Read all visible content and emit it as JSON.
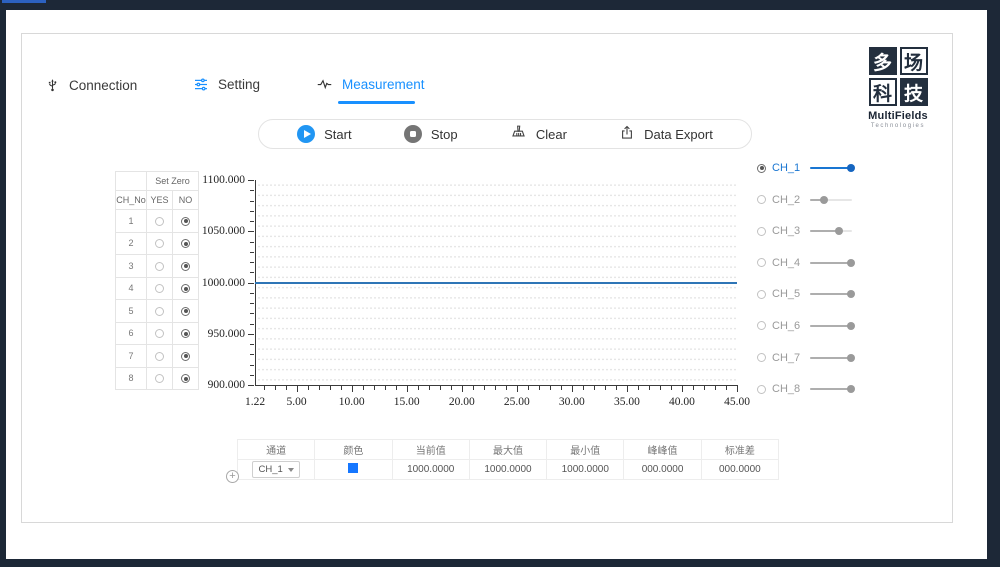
{
  "colors": {
    "frame_navy": "#1d2837",
    "accent_blue": "#1890ff",
    "start_blue": "#2196f3",
    "series_blue": "#2e75b6",
    "channel_blue": "#1976d2",
    "swatch_blue": "#1677ff"
  },
  "tabs": [
    {
      "label": "Connection",
      "icon": "usb-icon",
      "active": false
    },
    {
      "label": "Setting",
      "icon": "sliders-icon",
      "active": false
    },
    {
      "label": "Measurement",
      "icon": "pulse-icon",
      "active": true
    }
  ],
  "logo": {
    "chars": [
      "多",
      "场",
      "科",
      "技"
    ],
    "name": "MultiFields",
    "sub": "Technologies"
  },
  "toolbar": {
    "start_label": "Start",
    "stop_label": "Stop",
    "clear_label": "Clear",
    "export_label": "Data Export"
  },
  "zero_table": {
    "title": "Set Zero",
    "col_ch": "CH_No",
    "col_yes": "YES",
    "col_no": "NO",
    "rows": [
      {
        "ch": "1",
        "set_zero": "NO"
      },
      {
        "ch": "2",
        "set_zero": "NO"
      },
      {
        "ch": "3",
        "set_zero": "NO"
      },
      {
        "ch": "4",
        "set_zero": "NO"
      },
      {
        "ch": "5",
        "set_zero": "NO"
      },
      {
        "ch": "6",
        "set_zero": "NO"
      },
      {
        "ch": "7",
        "set_zero": "NO"
      },
      {
        "ch": "8",
        "set_zero": "NO"
      }
    ]
  },
  "chart_data": {
    "type": "line",
    "title": "",
    "xlabel": "",
    "ylabel": "",
    "xlim": [
      1.22,
      45.0
    ],
    "ylim": [
      900,
      1100
    ],
    "x_major_values": [
      1.22,
      5,
      10,
      15,
      20,
      25,
      30,
      35,
      40,
      45
    ],
    "x_major_ticks": [
      "1.22",
      "5.00",
      "10.00",
      "15.00",
      "20.00",
      "25.00",
      "30.00",
      "35.00",
      "40.00",
      "45.00"
    ],
    "x_minor_step": 1,
    "y_major_values": [
      900,
      950,
      1000,
      1050,
      1100
    ],
    "y_major_ticks": [
      "900.000",
      "950.000",
      "1000.000",
      "1050.000",
      "1100.000"
    ],
    "y_minor_step": 10,
    "grid": "dotted",
    "legend_position": "right",
    "series": [
      {
        "name": "CH_1",
        "color": "#2e75b6",
        "constant_value": 1000,
        "description": "flat line at y=1000 spanning x=1.22 to x=45.00"
      }
    ]
  },
  "channels": [
    {
      "label": "CH_1",
      "selected": true,
      "slider_pos": 1.0
    },
    {
      "label": "CH_2",
      "selected": false,
      "slider_pos": 0.35
    },
    {
      "label": "CH_3",
      "selected": false,
      "slider_pos": 0.72
    },
    {
      "label": "CH_4",
      "selected": false,
      "slider_pos": 1.0
    },
    {
      "label": "CH_5",
      "selected": false,
      "slider_pos": 1.0
    },
    {
      "label": "CH_6",
      "selected": false,
      "slider_pos": 1.0
    },
    {
      "label": "CH_7",
      "selected": false,
      "slider_pos": 1.0
    },
    {
      "label": "CH_8",
      "selected": false,
      "slider_pos": 1.0
    }
  ],
  "stats_table": {
    "headers": [
      "通道",
      "颜色",
      "当前值",
      "最大值",
      "最小值",
      "峰峰值",
      "标准差"
    ],
    "row": {
      "channel": "CH_1",
      "color": "#1677ff",
      "current": "1000.0000",
      "max": "1000.0000",
      "min": "1000.0000",
      "peak_peak": "000.0000",
      "std_dev": "000.0000"
    }
  },
  "plus_button": {
    "glyph": "+"
  }
}
